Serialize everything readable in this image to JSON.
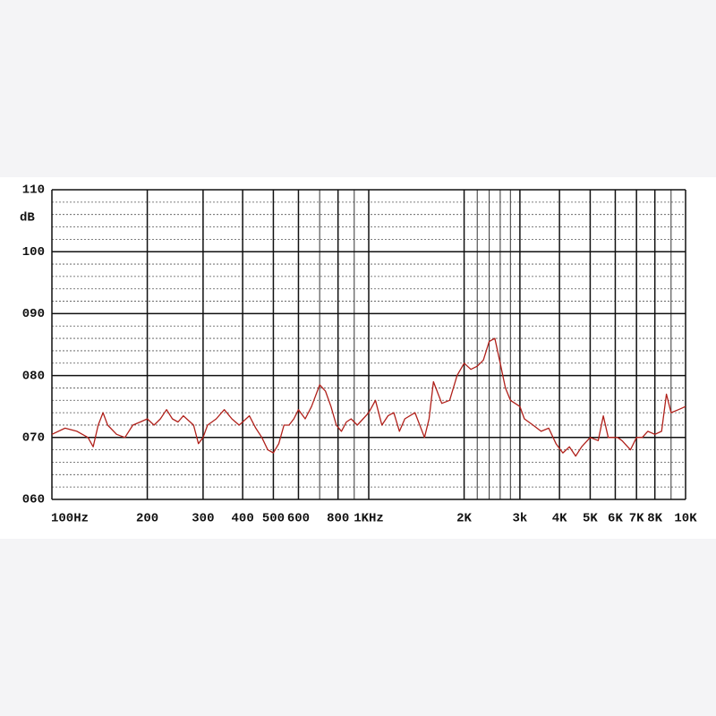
{
  "chart_data": {
    "type": "line",
    "y_label": "dB",
    "xlim": [
      100,
      10000
    ],
    "ylim": [
      60,
      110
    ],
    "xscale": "log",
    "grid": true,
    "xticks": [
      {
        "value": 100,
        "label": "100Hz"
      },
      200,
      300,
      400,
      500,
      600,
      800,
      {
        "value": 1000,
        "label": "1KHz"
      },
      {
        "value": 2000,
        "label": "2K"
      },
      {
        "value": 3000,
        "label": "3k"
      },
      {
        "value": 4000,
        "label": "4K"
      },
      {
        "value": 5000,
        "label": "5K"
      },
      {
        "value": 6000,
        "label": "6K"
      },
      {
        "value": 7000,
        "label": "7K"
      },
      {
        "value": 8000,
        "label": "8K"
      },
      {
        "value": 10000,
        "label": "10K"
      }
    ],
    "xminorticks": [
      700,
      900,
      2200,
      2400,
      2600,
      2800,
      9000
    ],
    "yticks": [
      110,
      100,
      {
        "value": 90,
        "label": "090"
      },
      {
        "value": 80,
        "label": "080"
      },
      {
        "value": 70,
        "label": "070"
      },
      {
        "value": 60,
        "label": "060"
      }
    ],
    "yminorticks": [
      62,
      64,
      66,
      68,
      72,
      74,
      76,
      78,
      82,
      84,
      86,
      88,
      92,
      94,
      96,
      98,
      102,
      104,
      106,
      108
    ],
    "series": [
      {
        "color": "#b0201a",
        "x": [
          100,
          110,
          120,
          130,
          135,
          140,
          145,
          150,
          160,
          170,
          180,
          190,
          200,
          210,
          220,
          230,
          240,
          250,
          260,
          280,
          290,
          300,
          310,
          330,
          350,
          370,
          390,
          400,
          420,
          440,
          460,
          480,
          500,
          520,
          540,
          560,
          580,
          600,
          630,
          660,
          700,
          730,
          760,
          790,
          820,
          850,
          880,
          920,
          960,
          1000,
          1050,
          1100,
          1150,
          1200,
          1250,
          1300,
          1400,
          1500,
          1550,
          1600,
          1700,
          1800,
          1900,
          2000,
          2100,
          2200,
          2300,
          2400,
          2500,
          2600,
          2700,
          2800,
          3000,
          3100,
          3300,
          3500,
          3700,
          3900,
          4100,
          4300,
          4500,
          4700,
          5000,
          5300,
          5500,
          5700,
          6100,
          6300,
          6700,
          7000,
          7300,
          7600,
          8000,
          8400,
          8700,
          9000,
          9500,
          10000
        ],
        "values": [
          70.5,
          71.5,
          71,
          70,
          68.5,
          72,
          74,
          72,
          70.5,
          70,
          72,
          72.5,
          73,
          72,
          73,
          74.5,
          73,
          72.5,
          73.5,
          72,
          69,
          70,
          72,
          73,
          74.5,
          73,
          72,
          72.5,
          73.5,
          71.5,
          70,
          68,
          67.5,
          69,
          72,
          72,
          73,
          74.5,
          73,
          75,
          78.5,
          77.5,
          75,
          72,
          71,
          72.5,
          73,
          72,
          73,
          74,
          76,
          72,
          73.5,
          74,
          71,
          73,
          74,
          70,
          73,
          79,
          75.5,
          76,
          80,
          82,
          81,
          81.5,
          82.5,
          85.5,
          86,
          82,
          78,
          76,
          75,
          73,
          72,
          71,
          71.5,
          69,
          67.5,
          68.5,
          67,
          68.5,
          70,
          69.5,
          73.5,
          70,
          70,
          69.5,
          68,
          70,
          70,
          71,
          70.5,
          71,
          77,
          74,
          74.5,
          75
        ]
      }
    ]
  }
}
